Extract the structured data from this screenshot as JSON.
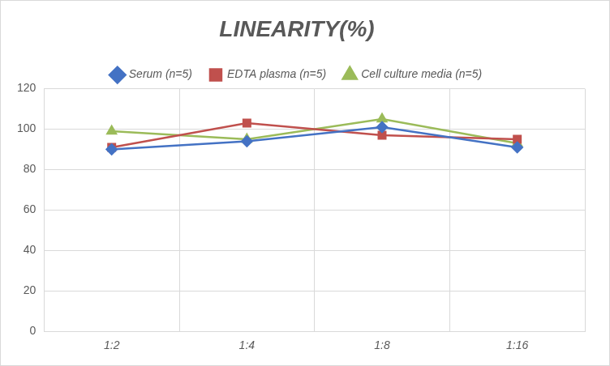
{
  "chart_data": {
    "type": "line",
    "title": "LINEARITY(%)",
    "categories": [
      "1:2",
      "1:4",
      "1:8",
      "1:16"
    ],
    "series": [
      {
        "name": "Serum (n=5)",
        "color": "#4472c4",
        "marker": "diamond",
        "values": [
          90,
          94,
          101,
          91
        ]
      },
      {
        "name": "EDTA plasma (n=5)",
        "color": "#c0504d",
        "marker": "square",
        "values": [
          91,
          103,
          97,
          95
        ]
      },
      {
        "name": "Cell culture media (n=5)",
        "color": "#9bbb59",
        "marker": "triangle",
        "values": [
          99,
          95,
          105,
          93
        ]
      }
    ],
    "ylim": [
      0,
      120
    ],
    "yticks": [
      0,
      20,
      40,
      60,
      80,
      100,
      120
    ],
    "grid": true,
    "legend": "top"
  }
}
